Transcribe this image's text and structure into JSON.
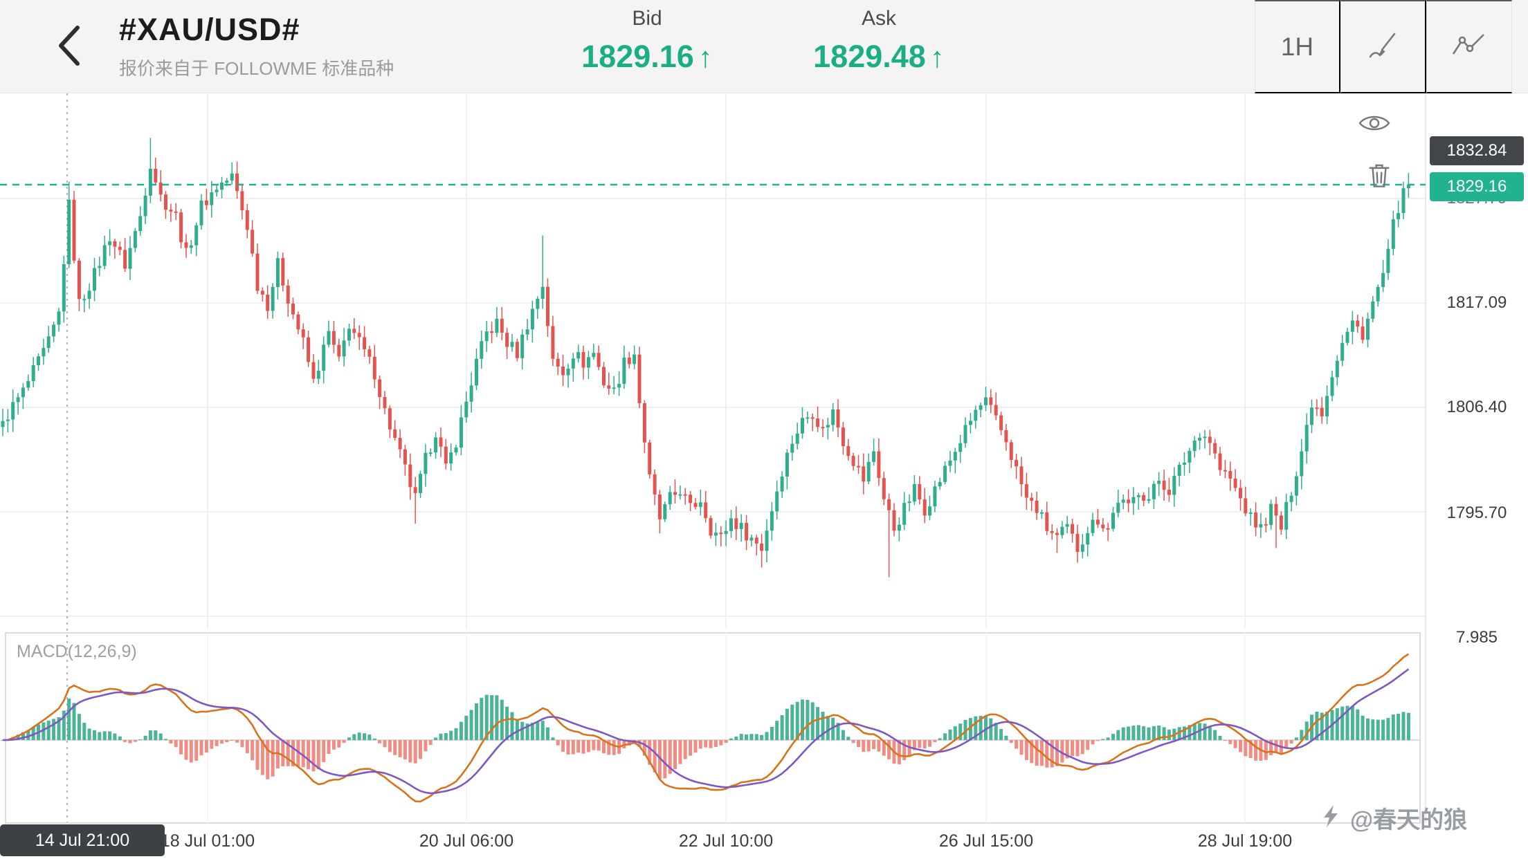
{
  "header": {
    "symbol": "#XAU/USD#",
    "subtitle": "报价来自于 FOLLOWME 标准品种",
    "bid_label": "Bid",
    "bid_value": "1829.16",
    "bid_arrow": "↑",
    "ask_label": "Ask",
    "ask_value": "1829.48",
    "ask_arrow": "↑",
    "timeframe": "1H"
  },
  "axis": {
    "high_badge": "1832.84",
    "current_badge": "1829.16",
    "hidden_label": "1827.79",
    "price_labels": [
      "1817.09",
      "1806.40",
      "1795.70"
    ],
    "macd_scale_label": "7.985"
  },
  "macd": {
    "label": "MACD(12,26,9)"
  },
  "dates": {
    "badge": "14 Jul 21:00",
    "labels": [
      "18 Jul 01:00",
      "20 Jul 06:00",
      "22 Jul 10:00",
      "26 Jul 15:00",
      "28 Jul 19:00"
    ]
  },
  "watermark": {
    "text": "@春天的狼"
  },
  "colors": {
    "accent": "#21b390",
    "candle_up": "#2fad8c",
    "candle_down": "#e4544f",
    "hist_up": "#4ab398",
    "hist_down": "#ef8d84",
    "macd_line": "#d9731a",
    "signal_line": "#7e57c2",
    "badge_dark": "#42464b",
    "grid": "#ececec"
  },
  "chart_data": {
    "type": "candlestick",
    "symbol": "#XAU/USD#",
    "timeframe": "1H",
    "bars_visible": 277,
    "current_price": 1829.16,
    "session_high_label": 1832.84,
    "gridline_prices": [
      1827.79,
      1817.09,
      1806.4,
      1795.7,
      1785.01
    ],
    "visible_price_range": [
      1783.8,
      1838.5
    ],
    "x_labels": [
      "14 Jul 21:00",
      "18 Jul 01:00",
      "20 Jul 06:00",
      "22 Jul 10:00",
      "26 Jul 15:00",
      "28 Jul 19:00"
    ],
    "close_path": [
      [
        0,
        1805
      ],
      [
        4,
        1808
      ],
      [
        9,
        1813
      ],
      [
        11,
        1816
      ],
      [
        13,
        1827
      ],
      [
        15,
        1817
      ],
      [
        18,
        1820
      ],
      [
        21,
        1824
      ],
      [
        24,
        1821
      ],
      [
        27,
        1826
      ],
      [
        29,
        1831.5
      ],
      [
        31,
        1828
      ],
      [
        34,
        1826
      ],
      [
        36,
        1822
      ],
      [
        39,
        1827
      ],
      [
        42,
        1829
      ],
      [
        45,
        1830
      ],
      [
        48,
        1825
      ],
      [
        50,
        1819
      ],
      [
        52,
        1817
      ],
      [
        54,
        1821
      ],
      [
        57,
        1816
      ],
      [
        59,
        1813
      ],
      [
        61,
        1809
      ],
      [
        64,
        1814
      ],
      [
        66,
        1811
      ],
      [
        68,
        1815
      ],
      [
        71,
        1812
      ],
      [
        73,
        1810
      ],
      [
        75,
        1806
      ],
      [
        77,
        1803
      ],
      [
        79,
        1800
      ],
      [
        81,
        1797
      ],
      [
        83,
        1801
      ],
      [
        85,
        1804
      ],
      [
        87,
        1800
      ],
      [
        89,
        1803
      ],
      [
        91,
        1807
      ],
      [
        93,
        1811
      ],
      [
        95,
        1814
      ],
      [
        97,
        1815
      ],
      [
        99,
        1813
      ],
      [
        101,
        1812
      ],
      [
        103,
        1815
      ],
      [
        106,
        1819
      ],
      [
        108,
        1811
      ],
      [
        110,
        1810
      ],
      [
        112,
        1812
      ],
      [
        114,
        1811
      ],
      [
        116,
        1812
      ],
      [
        118,
        1809
      ],
      [
        120,
        1808
      ],
      [
        122,
        1811
      ],
      [
        124,
        1812
      ],
      [
        125,
        1807
      ],
      [
        127,
        1799
      ],
      [
        129,
        1795
      ],
      [
        131,
        1797
      ],
      [
        133,
        1798
      ],
      [
        135,
        1796
      ],
      [
        137,
        1797
      ],
      [
        139,
        1794
      ],
      [
        141,
        1793
      ],
      [
        143,
        1795
      ],
      [
        145,
        1794
      ],
      [
        147,
        1793
      ],
      [
        149,
        1792
      ],
      [
        151,
        1796
      ],
      [
        153,
        1800
      ],
      [
        155,
        1803
      ],
      [
        157,
        1805
      ],
      [
        159,
        1806
      ],
      [
        161,
        1804
      ],
      [
        163,
        1806
      ],
      [
        165,
        1803
      ],
      [
        167,
        1801
      ],
      [
        169,
        1799
      ],
      [
        171,
        1802
      ],
      [
        173,
        1797
      ],
      [
        175,
        1794
      ],
      [
        177,
        1796
      ],
      [
        179,
        1798
      ],
      [
        181,
        1796
      ],
      [
        183,
        1798
      ],
      [
        185,
        1800
      ],
      [
        187,
        1802
      ],
      [
        189,
        1804
      ],
      [
        191,
        1806
      ],
      [
        193,
        1807
      ],
      [
        195,
        1805
      ],
      [
        197,
        1803
      ],
      [
        199,
        1800
      ],
      [
        201,
        1797
      ],
      [
        203,
        1796
      ],
      [
        205,
        1794
      ],
      [
        207,
        1793
      ],
      [
        209,
        1794
      ],
      [
        211,
        1792
      ],
      [
        213,
        1794
      ],
      [
        215,
        1795
      ],
      [
        217,
        1794
      ],
      [
        219,
        1797
      ],
      [
        221,
        1796
      ],
      [
        223,
        1798
      ],
      [
        225,
        1797
      ],
      [
        227,
        1799
      ],
      [
        229,
        1798
      ],
      [
        231,
        1800
      ],
      [
        233,
        1802
      ],
      [
        235,
        1804
      ],
      [
        237,
        1803
      ],
      [
        239,
        1800
      ],
      [
        241,
        1799
      ],
      [
        243,
        1797
      ],
      [
        245,
        1795
      ],
      [
        247,
        1794
      ],
      [
        249,
        1796
      ],
      [
        251,
        1794
      ],
      [
        253,
        1798
      ],
      [
        255,
        1802
      ],
      [
        257,
        1807
      ],
      [
        259,
        1806
      ],
      [
        261,
        1810
      ],
      [
        263,
        1813
      ],
      [
        265,
        1815
      ],
      [
        267,
        1814
      ],
      [
        269,
        1817
      ],
      [
        271,
        1820
      ],
      [
        272,
        1822
      ],
      [
        273,
        1825
      ],
      [
        274,
        1827
      ],
      [
        276,
        1829.2
      ]
    ],
    "wick_extremes": [
      {
        "i": 13,
        "high": 1829.5
      },
      {
        "i": 29,
        "high": 1834.0
      },
      {
        "i": 45,
        "high": 1831.5
      },
      {
        "i": 106,
        "high": 1824.0
      },
      {
        "i": 81,
        "low": 1794.5
      },
      {
        "i": 129,
        "low": 1793.5
      },
      {
        "i": 149,
        "low": 1790.0
      },
      {
        "i": 174,
        "low": 1789.0
      },
      {
        "i": 207,
        "low": 1791.5
      },
      {
        "i": 250,
        "low": 1792.0
      },
      {
        "i": 276,
        "high": 1829.8
      }
    ],
    "indicator": {
      "name": "MACD",
      "params": [
        12,
        26,
        9
      ],
      "axis_max_label": 7.985,
      "line_colors": {
        "macd": "#d9731a",
        "signal": "#7e57c2"
      },
      "hist_colors": {
        "up": "#4ab398",
        "down": "#ef8d84"
      }
    }
  }
}
